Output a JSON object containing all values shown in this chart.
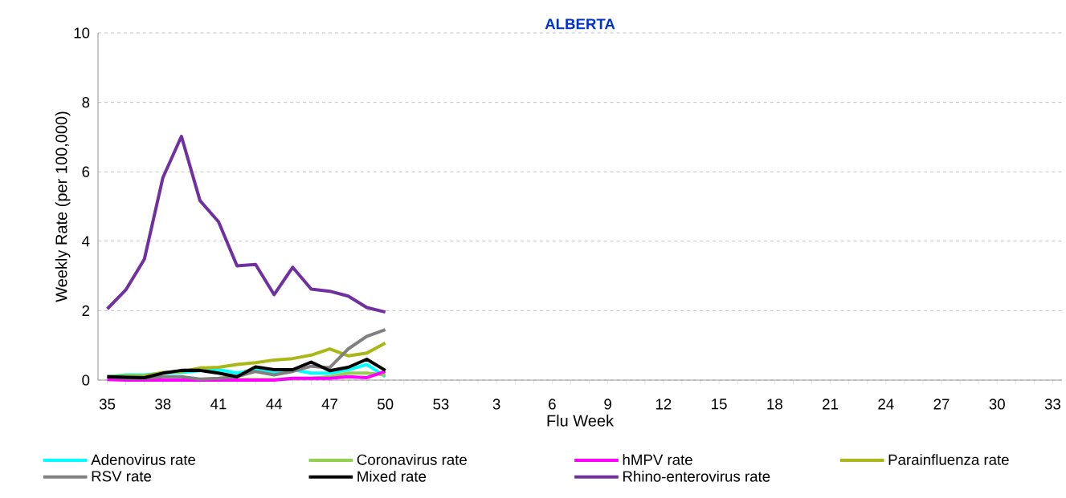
{
  "chart_data": {
    "type": "line",
    "title": "ALBERTA",
    "xlabel": "Flu Week",
    "ylabel": "Weekly Rate (per 100,000)",
    "categories": [
      "35",
      null,
      null,
      "38",
      null,
      null,
      "41",
      null,
      null,
      "44",
      null,
      null,
      "47",
      null,
      null,
      "50",
      null,
      null,
      "53",
      null,
      null,
      "3",
      null,
      null,
      "6",
      null,
      null,
      "9",
      null,
      null,
      "12",
      null,
      null,
      "15",
      null,
      null,
      "18",
      null,
      null,
      "21",
      null,
      null,
      "24",
      null,
      null,
      "27",
      null,
      null,
      "30",
      null,
      null,
      "33"
    ],
    "series": [
      {
        "name": "Adenovirus rate",
        "color": "#00ffff",
        "values": [
          0.1,
          0.15,
          0.15,
          0.2,
          0.22,
          0.27,
          0.3,
          0.2,
          0.3,
          0.2,
          0.3,
          0.2,
          0.2,
          0.3,
          0.45,
          0.1,
          null,
          null,
          null,
          null,
          null,
          null,
          null,
          null,
          null,
          null,
          null,
          null,
          null,
          null,
          null,
          null,
          null,
          null,
          null,
          null,
          null,
          null,
          null,
          null,
          null,
          null,
          null,
          null,
          null,
          null,
          null,
          null,
          null,
          null,
          null,
          null
        ]
      },
      {
        "name": "Coronavirus rate",
        "color": "#92d050",
        "values": [
          null,
          null,
          null,
          null,
          null,
          null,
          0.02,
          0.02,
          0.02,
          0.02,
          0.05,
          0.05,
          0.1,
          0.2,
          0.2,
          0.15,
          null,
          null,
          null,
          null,
          null,
          null,
          null,
          null,
          null,
          null,
          null,
          null,
          null,
          null,
          null,
          null,
          null,
          null,
          null,
          null,
          null,
          null,
          null,
          null,
          null,
          null,
          null,
          null,
          null,
          null,
          null,
          null,
          null,
          null,
          null,
          null
        ]
      },
      {
        "name": "hMPV rate",
        "color": "#ff00ff",
        "values": [
          0.02,
          0.0,
          0.0,
          0.0,
          0.0,
          0.0,
          0.0,
          0.0,
          0.0,
          0.0,
          0.05,
          0.05,
          0.05,
          0.1,
          0.07,
          0.25,
          null,
          null,
          null,
          null,
          null,
          null,
          null,
          null,
          null,
          null,
          null,
          null,
          null,
          null,
          null,
          null,
          null,
          null,
          null,
          null,
          null,
          null,
          null,
          null,
          null,
          null,
          null,
          null,
          null,
          null,
          null,
          null,
          null,
          null,
          null,
          null
        ]
      },
      {
        "name": "Parainfluenza rate",
        "color": "#a9b818",
        "values": [
          0.1,
          0.12,
          0.12,
          0.22,
          0.25,
          0.35,
          0.37,
          0.45,
          0.5,
          0.58,
          0.62,
          0.72,
          0.9,
          0.7,
          0.78,
          1.07,
          null,
          null,
          null,
          null,
          null,
          null,
          null,
          null,
          null,
          null,
          null,
          null,
          null,
          null,
          null,
          null,
          null,
          null,
          null,
          null,
          null,
          null,
          null,
          null,
          null,
          null,
          null,
          null,
          null,
          null,
          null,
          null,
          null,
          null,
          null,
          null
        ]
      },
      {
        "name": "RSV rate",
        "color": "#808080",
        "values": [
          0.1,
          0.05,
          0.05,
          0.1,
          0.1,
          0.03,
          0.05,
          0.1,
          0.25,
          0.15,
          0.25,
          0.4,
          0.36,
          0.9,
          1.26,
          1.45,
          null,
          null,
          null,
          null,
          null,
          null,
          null,
          null,
          null,
          null,
          null,
          null,
          null,
          null,
          null,
          null,
          null,
          null,
          null,
          null,
          null,
          null,
          null,
          null,
          null,
          null,
          null,
          null,
          null,
          null,
          null,
          null,
          null,
          null,
          null,
          null
        ]
      },
      {
        "name": "Mixed rate",
        "color": "#000000",
        "values": [
          0.1,
          0.08,
          0.07,
          0.2,
          0.28,
          0.28,
          0.2,
          0.1,
          0.38,
          0.3,
          0.3,
          0.52,
          0.27,
          0.37,
          0.6,
          0.28,
          null,
          null,
          null,
          null,
          null,
          null,
          null,
          null,
          null,
          null,
          null,
          null,
          null,
          null,
          null,
          null,
          null,
          null,
          null,
          null,
          null,
          null,
          null,
          null,
          null,
          null,
          null,
          null,
          null,
          null,
          null,
          null,
          null,
          null,
          null,
          null
        ]
      },
      {
        "name": "Rhino-enterovirus rate",
        "color": "#7030a0",
        "values": [
          2.05,
          2.6,
          3.48,
          5.83,
          7.02,
          5.17,
          4.56,
          3.29,
          3.33,
          2.46,
          3.25,
          2.62,
          2.56,
          2.42,
          2.09,
          1.96,
          null,
          null,
          null,
          null,
          null,
          null,
          null,
          null,
          null,
          null,
          null,
          null,
          null,
          null,
          null,
          null,
          null,
          null,
          null,
          null,
          null,
          null,
          null,
          null,
          null,
          null,
          null,
          null,
          null,
          null,
          null,
          null,
          null,
          null,
          null,
          null
        ]
      }
    ],
    "ylim": [
      0,
      10
    ],
    "yticks": [
      0,
      2,
      4,
      6,
      8,
      10
    ],
    "grid": "y",
    "legend": "bottom",
    "marker": "none",
    "line_style": "solid"
  }
}
